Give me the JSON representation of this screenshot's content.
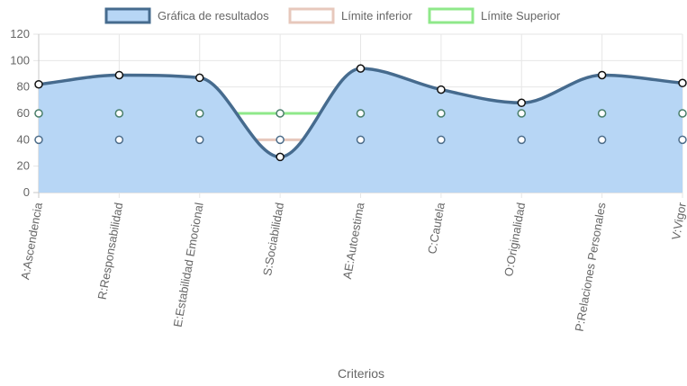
{
  "chart_data": {
    "type": "line",
    "categories": [
      "A:Ascendencia",
      "R:Responsabilidad",
      "E:Estabilidad Emocional",
      "S:Sociabilidad",
      "AE:Autoestima",
      "C:Cautela",
      "O:Originalidad",
      "P:Relaciones Personales",
      "V:Vigor"
    ],
    "series": [
      {
        "name": "Gráfica de resultados",
        "values": [
          82,
          89,
          87,
          27,
          94,
          78,
          68,
          89,
          83
        ],
        "line_color": "#466b8e",
        "fill_color": "#b7d6f5",
        "filled": true
      },
      {
        "name": "Límite inferior",
        "values": [
          40,
          40,
          40,
          40,
          40,
          40,
          40,
          40,
          40
        ],
        "line_color": "#e7c8bc",
        "filled": false
      },
      {
        "name": "Límite Superior",
        "values": [
          60,
          60,
          60,
          60,
          60,
          60,
          60,
          60,
          60
        ],
        "line_color": "#8fe88a",
        "filled": false
      }
    ],
    "xlabel": "Criterios",
    "ylabel": "",
    "ylim": [
      0,
      120
    ],
    "yticks": [
      0,
      20,
      40,
      60,
      80,
      100,
      120
    ],
    "grid": true,
    "legend_position": "top",
    "colors": {
      "grid": "#e6e6e6",
      "axis": "#c8c8c8",
      "text": "#666666",
      "point_fill": "#ffffff",
      "point_stroke": "#111111"
    }
  }
}
